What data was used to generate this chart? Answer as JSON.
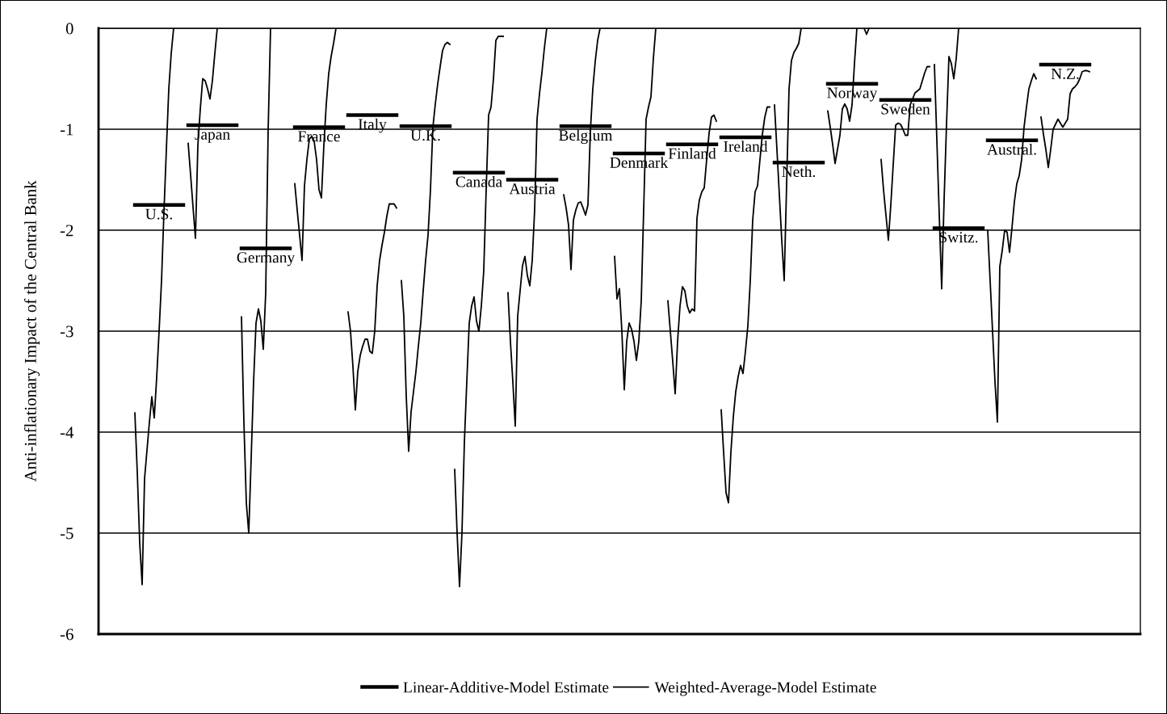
{
  "chart_data": {
    "type": "line",
    "ylabel": "Anti-inflationary Impact of the Central Bank",
    "ylim": [
      -6,
      0
    ],
    "yticks": [
      -6,
      -5,
      -4,
      -3,
      -2,
      -1,
      0
    ],
    "grid": "y",
    "legend": "bottom",
    "tick_labels": "y",
    "marker": "none",
    "line_style": "solid",
    "categories": [
      null,
      null,
      null,
      null,
      null,
      null,
      null,
      null,
      null,
      null,
      null,
      null,
      null,
      null,
      null,
      null,
      null,
      null,
      null,
      null,
      null,
      null,
      null,
      null,
      null,
      null,
      null,
      null,
      null,
      null,
      null,
      null,
      null,
      null,
      null,
      null,
      null,
      null,
      null,
      null,
      null,
      null,
      null,
      null,
      null,
      null,
      null,
      null,
      null,
      null,
      null,
      null,
      null,
      null,
      null,
      null,
      null,
      null,
      null,
      null,
      null,
      null,
      null,
      null,
      null,
      null,
      null,
      null,
      null,
      null,
      null,
      null,
      null,
      null,
      null,
      null,
      null,
      null,
      null,
      null,
      null,
      null,
      null,
      null,
      null,
      null,
      null,
      null,
      null,
      null,
      null,
      null,
      null,
      null,
      null,
      null,
      null,
      null,
      null,
      null,
      null,
      null,
      null,
      null,
      null,
      null,
      null,
      null,
      null,
      null,
      null,
      null,
      null,
      null,
      null,
      null,
      null,
      null,
      null,
      null,
      null,
      null,
      null,
      null,
      null,
      null,
      null,
      null,
      null,
      null,
      null,
      null,
      null,
      null,
      null,
      null,
      null,
      null,
      null,
      null,
      null,
      null,
      null,
      null,
      null,
      null,
      null,
      null,
      null,
      null,
      null,
      null,
      null,
      null,
      null,
      null,
      null,
      null,
      null,
      null,
      null,
      null,
      null,
      null,
      null,
      null,
      null,
      null,
      null,
      null,
      null,
      null,
      null,
      null,
      null,
      null,
      null,
      null,
      null,
      null,
      null,
      null,
      null,
      null,
      null,
      null,
      null,
      null,
      null,
      null,
      null,
      null,
      null,
      null,
      null,
      null,
      null,
      null,
      null,
      null,
      null,
      null,
      null,
      null,
      null,
      null,
      null,
      null,
      null,
      null,
      null,
      null,
      null,
      null,
      null,
      null,
      null,
      null,
      null,
      null,
      null,
      null,
      null,
      null,
      null,
      null,
      null,
      null,
      null,
      null,
      null,
      null,
      null,
      null,
      null,
      null,
      null,
      null,
      null,
      null,
      null,
      null,
      null,
      null,
      null,
      null,
      null,
      null,
      null,
      null,
      null,
      null,
      null,
      null,
      null,
      null,
      null,
      null,
      null,
      null,
      null,
      null,
      null,
      null,
      null,
      null,
      null,
      null,
      null,
      null,
      null,
      null,
      null,
      null,
      null,
      null,
      null,
      null,
      null,
      null,
      null,
      null,
      null,
      null,
      null,
      null,
      null,
      null,
      null,
      null,
      null,
      null,
      null,
      null,
      null,
      null,
      null,
      null,
      null,
      null,
      null,
      null,
      null,
      null,
      null,
      null,
      null,
      null,
      null,
      null,
      null,
      null,
      null,
      null,
      null,
      null,
      null,
      null,
      null,
      null,
      null,
      null,
      null,
      null,
      null,
      null,
      null,
      null,
      null,
      null,
      null,
      null,
      null,
      null,
      null,
      null,
      null,
      null,
      null,
      null,
      null,
      null,
      null,
      null,
      null,
      null,
      null,
      null,
      null,
      null,
      null,
      null,
      null,
      null,
      null,
      null,
      null,
      null,
      null,
      null,
      null,
      null,
      null,
      null,
      null,
      null,
      null,
      null,
      null,
      null,
      null,
      null,
      null,
      null,
      null,
      null,
      null,
      null,
      null,
      null,
      null,
      null,
      null,
      null,
      null,
      null,
      null,
      null,
      null,
      null,
      null,
      null,
      null,
      null,
      null,
      null,
      null,
      null,
      null,
      null,
      null,
      null,
      null,
      null,
      null,
      null,
      null,
      null,
      null,
      null,
      null,
      null,
      null,
      null,
      null,
      null,
      null,
      null,
      null,
      null,
      null,
      null,
      null,
      null,
      null,
      null,
      null,
      null,
      null,
      null,
      null
    ],
    "series": [
      {
        "name": "Linear-Additive-Model Estimate",
        "color": "#000000",
        "values": [
          null,
          null,
          null,
          null,
          null,
          null,
          null,
          null,
          null,
          null,
          null,
          null,
          null,
          null,
          null,
          -1.75,
          -1.75,
          -1.75,
          -1.75,
          -1.75,
          -1.75,
          -1.75,
          -1.75,
          -1.75,
          -1.75,
          -1.75,
          -1.75,
          -1.75,
          -1.75,
          -1.75,
          -1.75,
          -1.75,
          -1.75,
          -1.75,
          -1.75,
          -1.75,
          null,
          -0.96,
          -0.96,
          -0.96,
          -0.96,
          -0.96,
          -0.96,
          -0.96,
          -0.96,
          -0.96,
          -0.96,
          -0.96,
          -0.96,
          -0.96,
          -0.96,
          -0.96,
          -0.96,
          -0.96,
          -0.96,
          -0.96,
          -0.96,
          -0.96,
          null,
          -2.18,
          -2.18,
          -2.18,
          -2.18,
          -2.18,
          -2.18,
          -2.18,
          -2.18,
          -2.18,
          -2.18,
          -2.18,
          -2.18,
          -2.18,
          -2.18,
          -2.18,
          -2.18,
          -2.18,
          -2.18,
          -2.18,
          -2.18,
          -2.18,
          null,
          -0.98,
          -0.98,
          -0.98,
          -0.98,
          -0.98,
          -0.98,
          -0.98,
          -0.98,
          -0.98,
          -0.98,
          -0.98,
          -0.98,
          -0.98,
          -0.98,
          -0.98,
          -0.98,
          -0.98,
          -0.98,
          -0.98,
          -0.98,
          -0.98,
          null,
          -0.86,
          -0.86,
          -0.86,
          -0.86,
          -0.86,
          -0.86,
          -0.86,
          -0.86,
          -0.86,
          -0.86,
          -0.86,
          -0.86,
          -0.86,
          -0.86,
          -0.86,
          -0.86,
          -0.86,
          -0.86,
          -0.86,
          -0.86,
          -0.86,
          null,
          -0.97,
          -0.97,
          -0.97,
          -0.97,
          -0.97,
          -0.97,
          -0.97,
          -0.97,
          -0.97,
          -0.97,
          -0.97,
          -0.97,
          -0.97,
          -0.97,
          -0.97,
          -0.97,
          -0.97,
          -0.97,
          -0.97,
          -0.97,
          -0.97,
          null,
          -1.43,
          -1.43,
          -1.43,
          -1.43,
          -1.43,
          -1.43,
          -1.43,
          -1.43,
          -1.43,
          -1.43,
          -1.43,
          -1.43,
          -1.43,
          -1.43,
          -1.43,
          -1.43,
          -1.43,
          -1.43,
          -1.43,
          -1.43,
          -1.43,
          null,
          -1.5,
          -1.5,
          -1.5,
          -1.5,
          -1.5,
          -1.5,
          -1.5,
          -1.5,
          -1.5,
          -1.5,
          -1.5,
          -1.5,
          -1.5,
          -1.5,
          -1.5,
          -1.5,
          -1.5,
          -1.5,
          -1.5,
          -1.5,
          -1.5,
          null,
          -0.97,
          -0.97,
          -0.97,
          -0.97,
          -0.97,
          -0.97,
          -0.97,
          -0.97,
          -0.97,
          -0.97,
          -0.97,
          -0.97,
          -0.97,
          -0.97,
          -0.97,
          -0.97,
          -0.97,
          -0.97,
          -0.97,
          -0.97,
          -0.97,
          null,
          -1.24,
          -1.24,
          -1.24,
          -1.24,
          -1.24,
          -1.24,
          -1.24,
          -1.24,
          -1.24,
          -1.24,
          -1.24,
          -1.24,
          -1.24,
          -1.24,
          -1.24,
          -1.24,
          -1.24,
          -1.24,
          -1.24,
          -1.24,
          -1.24,
          null,
          -1.15,
          -1.15,
          -1.15,
          -1.15,
          -1.15,
          -1.15,
          -1.15,
          -1.15,
          -1.15,
          -1.15,
          -1.15,
          -1.15,
          -1.15,
          -1.15,
          -1.15,
          -1.15,
          -1.15,
          -1.15,
          -1.15,
          -1.15,
          -1.15,
          null,
          -1.08,
          -1.08,
          -1.08,
          -1.08,
          -1.08,
          -1.08,
          -1.08,
          -1.08,
          -1.08,
          -1.08,
          -1.08,
          -1.08,
          -1.08,
          -1.08,
          -1.08,
          -1.08,
          -1.08,
          -1.08,
          -1.08,
          -1.08,
          -1.08,
          null,
          -1.33,
          -1.33,
          -1.33,
          -1.33,
          -1.33,
          -1.33,
          -1.33,
          -1.33,
          -1.33,
          -1.33,
          -1.33,
          -1.33,
          -1.33,
          -1.33,
          -1.33,
          -1.33,
          -1.33,
          -1.33,
          -1.33,
          -1.33,
          -1.33,
          null,
          -0.55,
          -0.55,
          -0.55,
          -0.55,
          -0.55,
          -0.55,
          -0.55,
          -0.55,
          -0.55,
          -0.55,
          -0.55,
          -0.55,
          -0.55,
          -0.55,
          -0.55,
          -0.55,
          -0.55,
          -0.55,
          -0.55,
          -0.55,
          -0.55,
          null,
          -0.71,
          -0.71,
          -0.71,
          -0.71,
          -0.71,
          -0.71,
          -0.71,
          -0.71,
          -0.71,
          -0.71,
          -0.71,
          -0.71,
          -0.71,
          -0.71,
          -0.71,
          -0.71,
          -0.71,
          -0.71,
          -0.71,
          -0.71,
          -0.71,
          null,
          -1.98,
          -1.98,
          -1.98,
          -1.98,
          -1.98,
          -1.98,
          -1.98,
          -1.98,
          -1.98,
          -1.98,
          -1.98,
          -1.98,
          -1.98,
          -1.98,
          -1.98,
          -1.98,
          -1.98,
          -1.98,
          -1.98,
          -1.98,
          -1.98,
          null,
          -1.11,
          -1.11,
          -1.11,
          -1.11,
          -1.11,
          -1.11,
          -1.11,
          -1.11,
          -1.11,
          -1.11,
          -1.11,
          -1.11,
          -1.11,
          -1.11,
          -1.11,
          -1.11,
          -1.11,
          -1.11,
          -1.11,
          -1.11,
          -1.11,
          null,
          -0.36,
          -0.36,
          -0.36,
          -0.36,
          -0.36,
          -0.36,
          -0.36,
          -0.36,
          -0.36,
          -0.36,
          -0.36,
          -0.36,
          -0.36,
          -0.36,
          -0.36,
          -0.36,
          -0.36,
          -0.36,
          -0.36,
          -0.36,
          -0.36,
          null,
          null,
          null,
          null,
          null,
          null,
          null,
          null,
          null,
          null,
          null,
          null,
          null,
          null,
          null,
          null,
          null,
          null,
          null,
          null,
          null
        ]
      },
      {
        "name": "Weighted-Average-Model Estimate",
        "color": "#000000",
        "values": [
          null,
          null,
          null,
          null,
          null,
          null,
          null,
          null,
          null,
          null,
          null,
          null,
          null,
          null,
          null,
          -3.81,
          -4.4,
          -5.1,
          -5.51,
          -4.46,
          -4.18,
          -3.9,
          -3.65,
          -3.86,
          -3.46,
          -3.0,
          -2.5,
          -1.82,
          -1.2,
          -0.6,
          -0.25,
          0,
          null,
          null,
          null,
          null,
          null,
          -1.14,
          -1.45,
          -1.77,
          -2.08,
          -1.16,
          -0.8,
          -0.5,
          -0.52,
          -0.6,
          -0.7,
          -0.52,
          -0.25,
          0,
          null,
          null,
          null,
          null,
          null,
          null,
          null,
          null,
          null,
          -2.86,
          -3.9,
          -4.7,
          -5.0,
          -4.26,
          -3.5,
          -2.92,
          -2.78,
          -2.9,
          -3.18,
          -2.62,
          -1.02,
          0,
          null,
          null,
          null,
          null,
          null,
          null,
          null,
          null,
          null,
          -1.54,
          -1.8,
          -2.05,
          -2.3,
          -1.56,
          -1.3,
          -1.1,
          -1.07,
          -1.12,
          -1.3,
          -1.6,
          -1.68,
          -1.16,
          -0.75,
          -0.45,
          -0.28,
          -0.15,
          0,
          null,
          null,
          null,
          null,
          -2.81,
          -3.0,
          -3.35,
          -3.78,
          -3.4,
          -3.24,
          -3.15,
          -3.08,
          -3.08,
          -3.2,
          -3.22,
          -3.0,
          -2.55,
          -2.3,
          -2.15,
          -2.02,
          -1.86,
          -1.74,
          -1.74,
          -1.74,
          -1.78,
          null,
          -2.5,
          -2.85,
          -3.64,
          -4.19,
          -3.8,
          -3.6,
          -3.4,
          -3.15,
          -2.92,
          -2.6,
          -2.3,
          -2.05,
          -1.6,
          -0.98,
          -0.75,
          -0.55,
          -0.38,
          -0.22,
          -0.16,
          -0.14,
          -0.16,
          null,
          -4.37,
          -5.0,
          -5.53,
          -5.0,
          -4.1,
          -3.5,
          -2.92,
          -2.75,
          -2.66,
          -2.9,
          -3.0,
          -2.75,
          -2.4,
          -1.6,
          -0.86,
          -0.78,
          -0.5,
          -0.12,
          -0.08,
          -0.08,
          -0.08,
          null,
          -2.62,
          -3.1,
          -3.5,
          -3.94,
          -2.85,
          -2.6,
          -2.35,
          -2.26,
          -2.45,
          -2.55,
          -2.3,
          -1.8,
          -0.9,
          -0.65,
          -0.44,
          -0.2,
          0,
          null,
          null,
          null,
          null,
          null,
          null,
          -1.65,
          -1.78,
          -1.95,
          -2.39,
          -1.9,
          -1.8,
          -1.73,
          -1.72,
          -1.78,
          -1.85,
          -1.75,
          -1.02,
          -0.6,
          -0.33,
          -0.12,
          0,
          null,
          null,
          null,
          null,
          null,
          -2.26,
          -2.68,
          -2.58,
          -3.0,
          -3.58,
          -3.1,
          -2.92,
          -2.98,
          -3.1,
          -3.29,
          -3.1,
          -2.7,
          -1.8,
          -0.9,
          -0.78,
          -0.68,
          -0.3,
          0,
          null,
          null,
          null,
          null,
          -2.7,
          -3.0,
          -3.3,
          -3.62,
          -3.1,
          -2.75,
          -2.56,
          -2.6,
          -2.75,
          -2.82,
          -2.78,
          -2.8,
          -1.88,
          -1.7,
          -1.62,
          -1.58,
          -1.3,
          -1.04,
          -0.88,
          -0.86,
          -0.92,
          null,
          -3.78,
          -4.2,
          -4.6,
          -4.7,
          -4.2,
          -3.85,
          -3.6,
          -3.45,
          -3.34,
          -3.42,
          -3.2,
          -2.95,
          -2.5,
          -1.9,
          -1.62,
          -1.56,
          -1.3,
          -1.05,
          -0.88,
          -0.78,
          -0.78,
          null,
          -0.76,
          -1.2,
          -1.65,
          -2.1,
          -2.5,
          -1.55,
          -0.6,
          -0.32,
          -0.24,
          -0.2,
          -0.15,
          0,
          null,
          null,
          null,
          null,
          null,
          null,
          null,
          null,
          null,
          null,
          -0.82,
          -0.98,
          -1.15,
          -1.34,
          -1.2,
          -1.06,
          -0.8,
          -0.75,
          -0.8,
          -0.92,
          -0.76,
          -0.35,
          0,
          null,
          null,
          0,
          -0.06,
          0,
          null,
          null,
          null,
          null,
          -1.3,
          -1.6,
          -1.85,
          -2.1,
          -1.75,
          -1.35,
          -0.96,
          -0.94,
          -0.95,
          -1.0,
          -1.06,
          -1.06,
          -0.76,
          -0.7,
          -0.64,
          -0.62,
          -0.6,
          -0.52,
          -0.44,
          -0.38,
          -0.38,
          null,
          -0.36,
          -1.1,
          -1.85,
          -2.58,
          -1.7,
          -0.95,
          -0.28,
          -0.35,
          -0.5,
          -0.3,
          0,
          null,
          null,
          null,
          null,
          null,
          null,
          null,
          null,
          null,
          null,
          null,
          -2.0,
          -2.5,
          -3.0,
          -3.5,
          -3.9,
          -2.36,
          -2.2,
          -2.0,
          -2.02,
          -2.22,
          -1.98,
          -1.72,
          -1.54,
          -1.46,
          -1.3,
          -0.98,
          -0.78,
          -0.6,
          -0.52,
          -0.45,
          -0.5,
          null,
          -0.88,
          -1.05,
          -1.2,
          -1.38,
          -1.2,
          -1.0,
          -0.95,
          -0.9,
          -0.94,
          -0.98,
          -0.94,
          -0.9,
          -0.65,
          -0.6,
          -0.58,
          -0.55,
          -0.5,
          -0.43,
          -0.42,
          -0.42,
          -0.43,
          null,
          null,
          null,
          null,
          null,
          null,
          null,
          null,
          null,
          null,
          null,
          null,
          null,
          null,
          null,
          null,
          null,
          null,
          null,
          null,
          null
        ]
      }
    ],
    "annotations": [
      "U.S.",
      "Japan",
      "Germany",
      "France",
      "Italy",
      "U.K.",
      "Canada",
      "Austria",
      "Belgium",
      "Denmark",
      "Finland",
      "Ireland",
      "Neth.",
      "Norway",
      "Sweden",
      "Switz.",
      "Austral.",
      "N.Z."
    ]
  }
}
